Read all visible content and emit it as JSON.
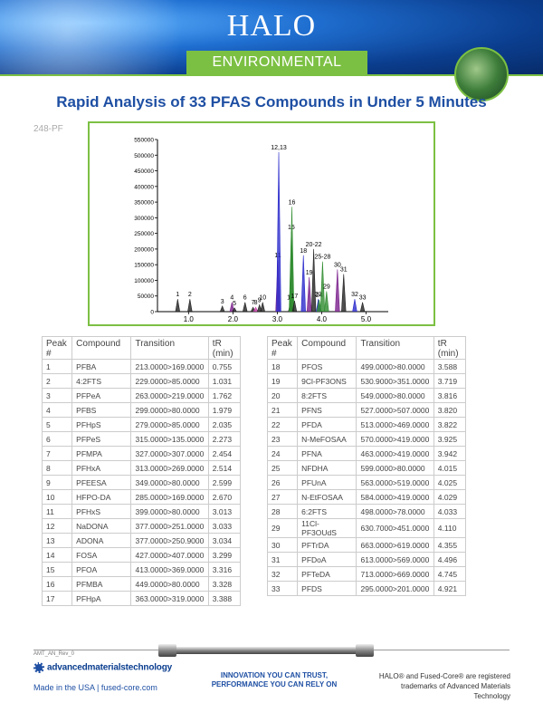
{
  "header": {
    "brand": "HALO",
    "section": "ENVIRONMENTAL"
  },
  "title": "Rapid Analysis of 33 PFAS Compounds in Under 5 Minutes",
  "figure_tag": "248-PF",
  "chart_data": {
    "type": "line",
    "ylim": [
      0,
      550000
    ],
    "xlim": [
      0.3,
      5.5
    ],
    "y_ticks": [
      "0",
      "50000",
      "100000",
      "150000",
      "200000",
      "250000",
      "300000",
      "350000",
      "400000",
      "450000",
      "500000",
      "550000"
    ],
    "x_ticks": [
      "1.0",
      "2.0",
      "3.0",
      "4.0",
      "5.0"
    ],
    "peaks": [
      {
        "label": "1",
        "x": 0.755,
        "y": 40000,
        "color": "#222"
      },
      {
        "label": "2",
        "x": 1.031,
        "y": 40000,
        "color": "#222"
      },
      {
        "label": "3",
        "x": 1.762,
        "y": 18000,
        "color": "#222"
      },
      {
        "label": "4",
        "x": 1.979,
        "y": 30000,
        "color": "#7a1f8c"
      },
      {
        "label": "5",
        "x": 2.035,
        "y": 12000,
        "color": "#222"
      },
      {
        "label": "6",
        "x": 2.273,
        "y": 30000,
        "color": "#222"
      },
      {
        "label": "7",
        "x": 2.454,
        "y": 14000,
        "color": "#222"
      },
      {
        "label": "8",
        "x": 2.514,
        "y": 14000,
        "color": "#c73da8"
      },
      {
        "label": "9",
        "x": 2.599,
        "y": 22000,
        "color": "#222"
      },
      {
        "label": "10",
        "x": 2.67,
        "y": 30000,
        "color": "#222"
      },
      {
        "label": "11",
        "x": 3.013,
        "y": 165000,
        "color": "#7a1f8c"
      },
      {
        "label": "12,13",
        "x": 3.033,
        "y": 510000,
        "color": "#2b2bcc"
      },
      {
        "label": "14",
        "x": 3.299,
        "y": 30000,
        "color": "#222"
      },
      {
        "label": "15",
        "x": 3.316,
        "y": 255000,
        "color": "#2e8b2e"
      },
      {
        "label": "16",
        "x": 3.328,
        "y": 335000,
        "color": "#2e8b2e"
      },
      {
        "label": "17",
        "x": 3.388,
        "y": 35000,
        "color": "#222"
      },
      {
        "label": "18",
        "x": 3.588,
        "y": 180000,
        "color": "#2b2bcc"
      },
      {
        "label": "19",
        "x": 3.719,
        "y": 110000,
        "color": "#7a1f8c"
      },
      {
        "label": "20-22",
        "x": 3.82,
        "y": 200000,
        "color": "#222"
      },
      {
        "label": "23",
        "x": 3.925,
        "y": 40000,
        "color": "#2b2bcc"
      },
      {
        "label": "24",
        "x": 3.942,
        "y": 38000,
        "color": "#2e8b2e"
      },
      {
        "label": "25-28",
        "x": 4.02,
        "y": 160000,
        "color": "#2e8b2e"
      },
      {
        "label": "29",
        "x": 4.11,
        "y": 65000,
        "color": "#2e8b2e"
      },
      {
        "label": "30",
        "x": 4.355,
        "y": 135000,
        "color": "#7a1f8c"
      },
      {
        "label": "31",
        "x": 4.496,
        "y": 120000,
        "color": "#222"
      },
      {
        "label": "32",
        "x": 4.745,
        "y": 40000,
        "color": "#2b2bcc"
      },
      {
        "label": "33",
        "x": 4.921,
        "y": 30000,
        "color": "#222"
      }
    ]
  },
  "table": {
    "headers": {
      "peak": "Peak #",
      "compound": "Compound",
      "transition": "Transition",
      "tr": "tR (min)"
    },
    "left": [
      [
        "1",
        "PFBA",
        "213.0000>169.0000",
        "0.755"
      ],
      [
        "2",
        "4:2FTS",
        "229.0000>85.0000",
        "1.031"
      ],
      [
        "3",
        "PFPeA",
        "263.0000>219.0000",
        "1.762"
      ],
      [
        "4",
        "PFBS",
        "299.0000>80.0000",
        "1.979"
      ],
      [
        "5",
        "PFHpS",
        "279.0000>85.0000",
        "2.035"
      ],
      [
        "6",
        "PFPeS",
        "315.0000>135.0000",
        "2.273"
      ],
      [
        "7",
        "PFMPA",
        "327.0000>307.0000",
        "2.454"
      ],
      [
        "8",
        "PFHxA",
        "313.0000>269.0000",
        "2.514"
      ],
      [
        "9",
        "PFEESA",
        "349.0000>80.0000",
        "2.599"
      ],
      [
        "10",
        "HFPO-DA",
        "285.0000>169.0000",
        "2.670"
      ],
      [
        "11",
        "PFHxS",
        "399.0000>80.0000",
        "3.013"
      ],
      [
        "12",
        "NaDONA",
        "377.0000>251.0000",
        "3.033"
      ],
      [
        "13",
        "ADONA",
        "377.0000>250.9000",
        "3.034"
      ],
      [
        "14",
        "FOSA",
        "427.0000>407.0000",
        "3.299"
      ],
      [
        "15",
        "PFOA",
        "413.0000>369.0000",
        "3.316"
      ],
      [
        "16",
        "PFMBA",
        "449.0000>80.0000",
        "3.328"
      ],
      [
        "17",
        "PFHpA",
        "363.0000>319.0000",
        "3.388"
      ]
    ],
    "right": [
      [
        "18",
        "PFOS",
        "499.0000>80.0000",
        "3.588"
      ],
      [
        "19",
        "9Cl-PF3ONS",
        "530.9000>351.0000",
        "3.719"
      ],
      [
        "20",
        "8:2FTS",
        "549.0000>80.0000",
        "3.816"
      ],
      [
        "21",
        "PFNS",
        "527.0000>507.0000",
        "3.820"
      ],
      [
        "22",
        "PFDA",
        "513.0000>469.0000",
        "3.822"
      ],
      [
        "23",
        "N-MeFOSAA",
        "570.0000>419.0000",
        "3.925"
      ],
      [
        "24",
        "PFNA",
        "463.0000>419.0000",
        "3.942"
      ],
      [
        "25",
        "NFDHA",
        "599.0000>80.0000",
        "4.015"
      ],
      [
        "26",
        "PFUnA",
        "563.0000>519.0000",
        "4.025"
      ],
      [
        "27",
        "N-EtFOSAA",
        "584.0000>419.0000",
        "4.029"
      ],
      [
        "28",
        "6:2FTS",
        "498.0000>78.0000",
        "4.033"
      ],
      [
        "29",
        "11Cl-PF3OUdS",
        "630.7000>451.0000",
        "4.110"
      ],
      [
        "30",
        "PFTrDA",
        "663.0000>619.0000",
        "4.355"
      ],
      [
        "31",
        "PFDoA",
        "613.0000>569.0000",
        "4.496"
      ],
      [
        "32",
        "PFTeDA",
        "713.0000>669.0000",
        "4.745"
      ],
      [
        "33",
        "PFDS",
        "295.0000>201.0000",
        "4.921"
      ]
    ]
  },
  "footer": {
    "rev": "AMT_AN_Rev_0",
    "company": "advancedmaterialstechnology",
    "made": "Made in the USA | fused-core.com",
    "tagline1": "INNOVATION YOU CAN TRUST,",
    "tagline2": "PERFORMANCE YOU CAN RELY ON",
    "trademark1": "HALO® and Fused-Core® are registered",
    "trademark2": "trademarks of Advanced Materials Technology"
  }
}
